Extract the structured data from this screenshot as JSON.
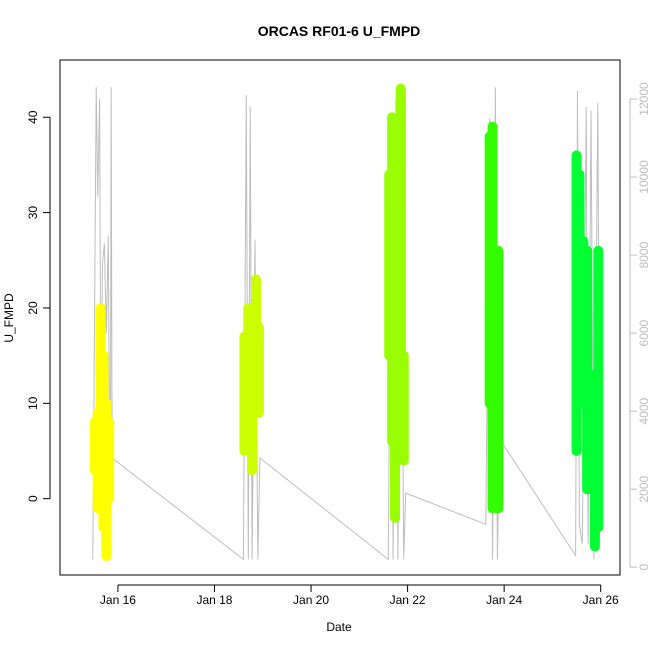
{
  "chart_data": {
    "type": "scatter",
    "title": "ORCAS RF01-6 U_FMPD",
    "xlabel": "Date",
    "ylabel": "U_FMPD",
    "x_ticks": [
      "Jan 16",
      "Jan 18",
      "Jan 20",
      "Jan 22",
      "Jan 24",
      "Jan 26"
    ],
    "x_tick_days": [
      16,
      18,
      20,
      22,
      24,
      26
    ],
    "xlim_days": [
      14.8,
      26.4
    ],
    "y_ticks": [
      "0",
      "10",
      "20",
      "30",
      "40"
    ],
    "ylim": [
      -8,
      46
    ],
    "y2_ticks": [
      "0",
      "2000",
      "4000",
      "6000",
      "8000",
      "10000",
      "12000"
    ],
    "y2lim": [
      -200,
      13000
    ],
    "grid": false,
    "legend": "none",
    "series": [
      {
        "color": "#ffff00",
        "flights": [
          {
            "x": 15.52,
            "ymin": 3,
            "ymax": 8
          },
          {
            "x": 15.58,
            "ymin": -1,
            "ymax": 9
          },
          {
            "x": 15.64,
            "ymin": 5,
            "ymax": 20
          },
          {
            "x": 15.7,
            "ymin": -3,
            "ymax": 15
          },
          {
            "x": 15.76,
            "ymin": -6,
            "ymax": 10
          },
          {
            "x": 15.82,
            "ymin": 0,
            "ymax": 8
          }
        ]
      },
      {
        "color": "#ccff00",
        "flights": [
          {
            "x": 18.62,
            "ymin": 5,
            "ymax": 17
          },
          {
            "x": 18.7,
            "ymin": 9,
            "ymax": 20
          },
          {
            "x": 18.78,
            "ymin": 3,
            "ymax": 18
          },
          {
            "x": 18.86,
            "ymin": 9,
            "ymax": 23
          },
          {
            "x": 18.92,
            "ymin": 9,
            "ymax": 18
          }
        ]
      },
      {
        "color": "#99ff00",
        "flights": [
          {
            "x": 21.62,
            "ymin": 15,
            "ymax": 34
          },
          {
            "x": 21.68,
            "ymin": 6,
            "ymax": 40
          },
          {
            "x": 21.74,
            "ymin": -2,
            "ymax": 34
          },
          {
            "x": 21.8,
            "ymin": 8,
            "ymax": 32
          },
          {
            "x": 21.86,
            "ymin": 15,
            "ymax": 43
          },
          {
            "x": 21.92,
            "ymin": 4,
            "ymax": 15
          }
        ]
      },
      {
        "color": "#33ff00",
        "flights": [
          {
            "x": 23.7,
            "ymin": 10,
            "ymax": 38
          },
          {
            "x": 23.76,
            "ymin": -1,
            "ymax": 39
          },
          {
            "x": 23.82,
            "ymin": 3,
            "ymax": 22
          },
          {
            "x": 23.88,
            "ymin": -1,
            "ymax": 26
          }
        ]
      },
      {
        "color": "#00ff33",
        "flights": [
          {
            "x": 25.5,
            "ymin": 5,
            "ymax": 36
          },
          {
            "x": 25.56,
            "ymin": 10,
            "ymax": 34
          },
          {
            "x": 25.64,
            "ymin": 20,
            "ymax": 27
          },
          {
            "x": 25.72,
            "ymin": 1,
            "ymax": 26
          },
          {
            "x": 25.8,
            "ymin": 1,
            "ymax": 13
          },
          {
            "x": 25.88,
            "ymin": -5,
            "ymax": 13
          },
          {
            "x": 25.95,
            "ymin": -3,
            "ymax": 26
          }
        ]
      }
    ],
    "altitude_line": {
      "color": "#bdbdbd",
      "points": [
        [
          15.48,
          200
        ],
        [
          15.55,
          12300
        ],
        [
          15.58,
          9500
        ],
        [
          15.62,
          12000
        ],
        [
          15.65,
          3000
        ],
        [
          15.68,
          7800
        ],
        [
          15.72,
          8300
        ],
        [
          15.76,
          6000
        ],
        [
          15.8,
          8500
        ],
        [
          15.84,
          200
        ],
        [
          15.86,
          12300
        ],
        [
          15.88,
          2800
        ],
        [
          18.6,
          200
        ],
        [
          18.66,
          12100
        ],
        [
          18.7,
          200
        ],
        [
          18.74,
          11800
        ],
        [
          18.78,
          200
        ],
        [
          18.84,
          8400
        ],
        [
          18.9,
          200
        ],
        [
          18.94,
          2800
        ],
        [
          21.6,
          200
        ],
        [
          21.66,
          11000
        ],
        [
          21.7,
          200
        ],
        [
          21.76,
          12000
        ],
        [
          21.8,
          200
        ],
        [
          21.86,
          11500
        ],
        [
          21.92,
          200
        ],
        [
          21.96,
          1900
        ],
        [
          23.62,
          1100
        ],
        [
          23.7,
          11500
        ],
        [
          23.76,
          200
        ],
        [
          23.82,
          12300
        ],
        [
          23.86,
          200
        ],
        [
          23.9,
          3300
        ],
        [
          25.48,
          300
        ],
        [
          25.52,
          12200
        ],
        [
          25.56,
          1100
        ],
        [
          25.62,
          600
        ],
        [
          25.7,
          11800
        ],
        [
          25.74,
          600
        ],
        [
          25.8,
          11700
        ],
        [
          25.86,
          200
        ],
        [
          25.94,
          11900
        ],
        [
          25.98,
          2800
        ]
      ]
    }
  }
}
